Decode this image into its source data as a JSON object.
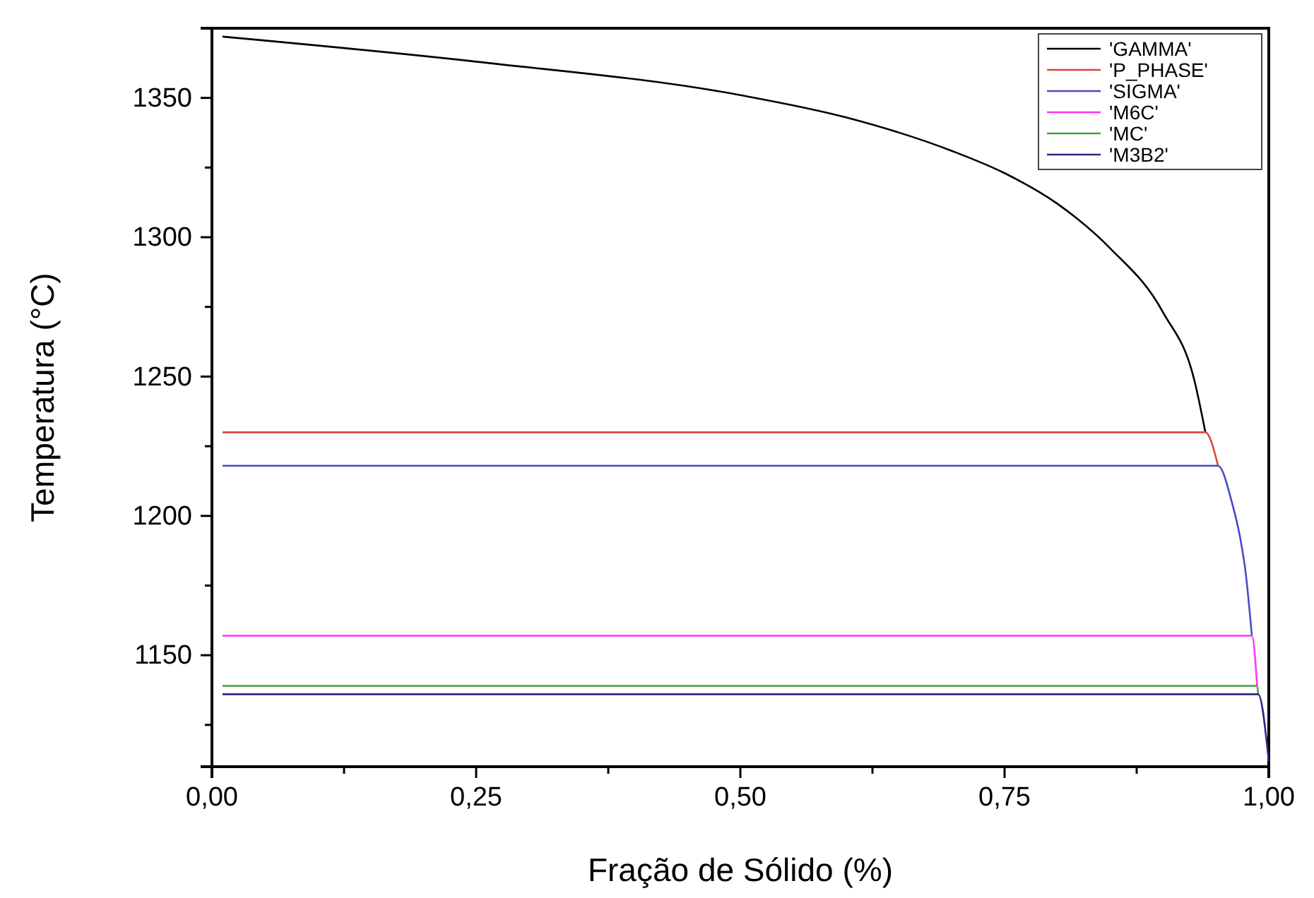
{
  "chart_data": {
    "type": "line",
    "xlabel": "Fração de Sólido (%)",
    "ylabel": "Temperatura (°C)",
    "xlim": [
      0,
      1
    ],
    "ylim": [
      1110,
      1375
    ],
    "xticks": [
      {
        "value": 0,
        "label": "0,00"
      },
      {
        "value": 0.125,
        "label": null
      },
      {
        "value": 0.25,
        "label": "0,25"
      },
      {
        "value": 0.375,
        "label": null
      },
      {
        "value": 0.5,
        "label": "0,50"
      },
      {
        "value": 0.625,
        "label": null
      },
      {
        "value": 0.75,
        "label": "0,75"
      },
      {
        "value": 0.875,
        "label": null
      },
      {
        "value": 1,
        "label": "1,00"
      }
    ],
    "yticks": [
      {
        "value": 1125,
        "label": null
      },
      1150,
      {
        "value": 1175,
        "label": null
      },
      1200,
      {
        "value": 1225,
        "label": null
      },
      1250,
      {
        "value": 1275,
        "label": null
      },
      1300,
      {
        "value": 1325,
        "label": null
      },
      1350
    ],
    "grid": false,
    "legend": "top right",
    "marker": "none",
    "line_style": "solid",
    "series": [
      {
        "name": "'GAMMA'",
        "color": "#000000",
        "x": [
          0.01,
          0.25,
          0.5,
          0.6,
          0.7,
          0.75,
          0.8,
          0.85,
          0.9,
          0.93,
          0.94
        ],
        "values": [
          1372,
          1363,
          1351,
          1343,
          1331,
          1323,
          1312,
          1296,
          1273,
          1248,
          1230
        ]
      },
      {
        "name": "'P_PHASE'",
        "color": "#d9473f",
        "x": [
          0.01,
          0.94,
          0.952
        ],
        "values": [
          1230,
          1230,
          1218
        ]
      },
      {
        "name": "'SIGMA'",
        "color": "#4a4ac8",
        "x": [
          0.01,
          0.952,
          0.965,
          0.973,
          0.978,
          0.984
        ],
        "values": [
          1218,
          1218,
          1205,
          1192,
          1180,
          1157
        ]
      },
      {
        "name": "'M6C'",
        "color": "#ff33ff",
        "x": [
          0.01,
          0.984,
          0.989
        ],
        "values": [
          1157,
          1157,
          1139
        ]
      },
      {
        "name": "'MC'",
        "color": "#44a044",
        "x": [
          0.01,
          0.989,
          0.99
        ],
        "values": [
          1139,
          1139,
          1136
        ]
      },
      {
        "name": "'M3B2'",
        "color": "#2a2a80",
        "x": [
          0.01,
          0.99,
          1.0
        ],
        "values": [
          1136,
          1136,
          1112
        ]
      }
    ]
  }
}
